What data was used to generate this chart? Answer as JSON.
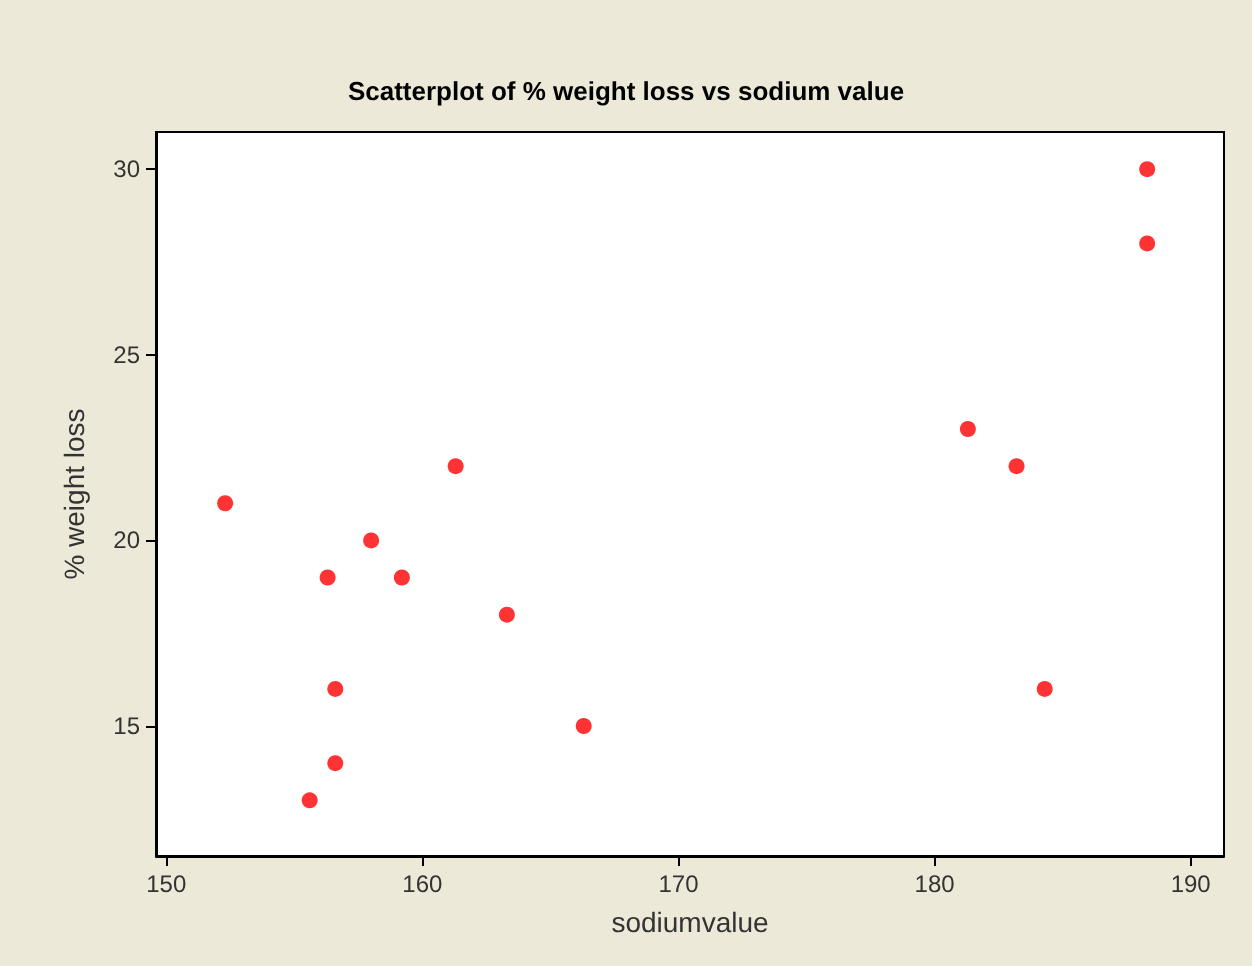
{
  "chart_data": {
    "type": "scatter",
    "title": "Scatterplot of % weight loss vs sodium value",
    "xlabel": "sodiumvalue",
    "ylabel": "% weight loss",
    "x": [
      152.3,
      156.3,
      155.6,
      156.6,
      156.6,
      158,
      159.2,
      161.3,
      163.3,
      166.3,
      181.3,
      183.2,
      184.3,
      188.3,
      188.3
    ],
    "values": [
      21,
      19,
      13,
      14,
      16,
      20,
      19,
      22,
      18,
      15,
      23,
      22,
      16,
      30,
      28
    ],
    "color": "#ff0000",
    "marker": "circle",
    "grid": false,
    "xlim": [
      149.6,
      191.3
    ],
    "xticks": [
      150,
      160,
      170,
      180,
      190
    ],
    "ylim": [
      11.5,
      31
    ],
    "yticks": [
      15,
      20,
      25,
      30
    ]
  }
}
